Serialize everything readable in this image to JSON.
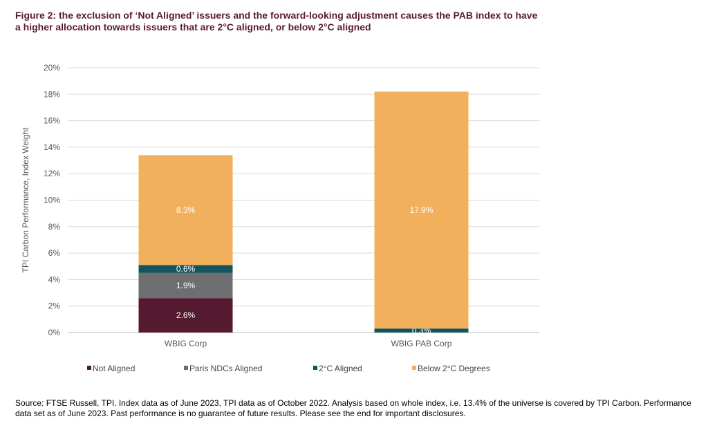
{
  "title": "Figure 2: the exclusion of ‘Not Aligned’ issuers and the forward-looking adjustment causes the PAB index to have a higher allocation towards issuers that are 2°C aligned, or below 2°C aligned",
  "source": "Source: FTSE Russell, TPI. Index data as of June 2023, TPI data as of October 2022. Analysis based on whole index, i.e. 13.4% of the universe is covered by TPI Carbon. Performance data set as of June 2023. Past performance is no guarantee of future results. Please see the end for important disclosures.",
  "chart_data": {
    "type": "bar",
    "stacked": true,
    "categories": [
      "WBIG Corp",
      "WBIG PAB Corp"
    ],
    "series": [
      {
        "name": "Not Aligned",
        "color": "#561a30",
        "values": [
          2.6,
          0
        ],
        "labels": [
          "2.6%",
          ""
        ]
      },
      {
        "name": "Paris NDCs Aligned",
        "color": "#6d6e70",
        "values": [
          1.9,
          0
        ],
        "labels": [
          "1.9%",
          ""
        ]
      },
      {
        "name": "2°C Aligned",
        "color": "#14545e",
        "values": [
          0.6,
          0.3
        ],
        "labels": [
          "0.6%",
          "0.3%"
        ]
      },
      {
        "name": "Below 2°C Degrees",
        "color": "#f3b05c",
        "values": [
          8.3,
          17.9
        ],
        "labels": [
          "8.3%",
          "17.9%"
        ]
      }
    ],
    "ylabel": "TPI Carbon Performance, Index Weight",
    "xlabel": "",
    "ylim": [
      0,
      20
    ],
    "yticks": [
      "0%",
      "2%",
      "4%",
      "6%",
      "8%",
      "10%",
      "12%",
      "14%",
      "16%",
      "18%",
      "20%"
    ],
    "grid": true,
    "legend_position": "bottom"
  }
}
